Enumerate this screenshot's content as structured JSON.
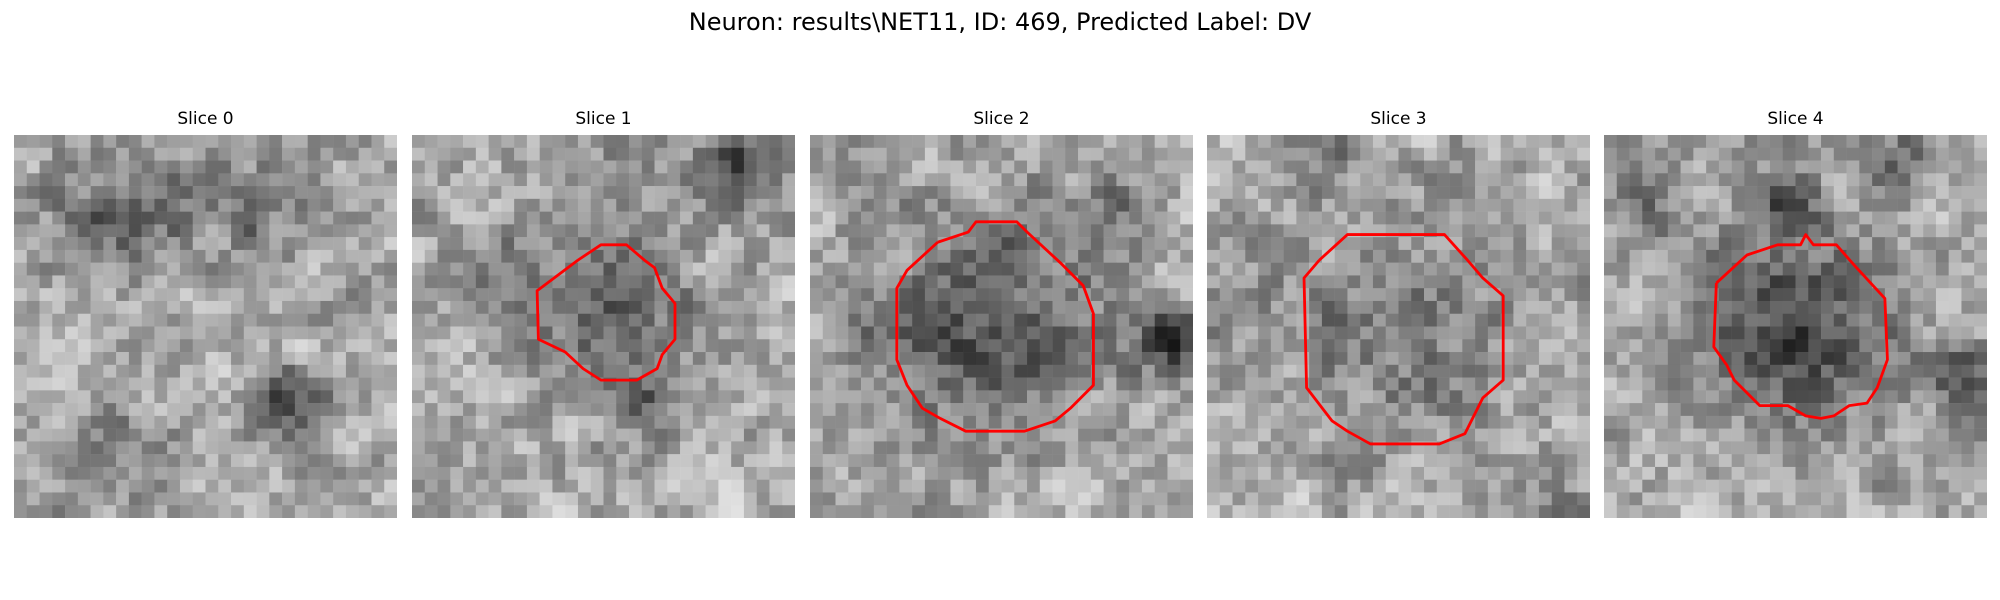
{
  "figure": {
    "title": "Neuron: results\\NET11, ID: 469, Predicted Label: DV",
    "colormap": "gray",
    "contour_color": "#ff0000"
  },
  "slices": [
    {
      "label": "Slice 0",
      "has_contour": false
    },
    {
      "label": "Slice 1",
      "has_contour": true
    },
    {
      "label": "Slice 2",
      "has_contour": true
    },
    {
      "label": "Slice 3",
      "has_contour": true
    },
    {
      "label": "Slice 4",
      "has_contour": true
    }
  ]
}
